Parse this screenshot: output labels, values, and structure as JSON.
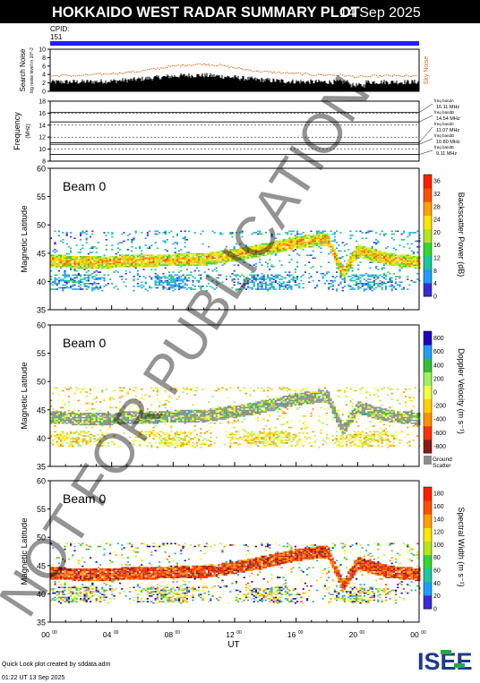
{
  "header": {
    "title": "HOKKAIDO WEST RADAR SUMMARY PLOT",
    "date": "14 Sep 2025",
    "cpid_label": "CPID:",
    "cpid_value": "151"
  },
  "noise_panel": {
    "ylabel": "Search Noise",
    "ylabel_sub": "log noise level in 10^-2",
    "side_label": "Sky Noise",
    "ticks": [
      "0",
      "2",
      "4",
      "6",
      "8",
      "10"
    ]
  },
  "freq_panel": {
    "ylabel": "Frequency",
    "ylabel_unit": "(MHz)",
    "ticks": [
      "8",
      "10",
      "12",
      "14",
      "16",
      "18"
    ],
    "bands": [
      {
        "label": "freq bandA",
        "value": "16.11 MHz"
      },
      {
        "label": "freq bandB",
        "value": "14.54 MHz"
      },
      {
        "label": "freq bandC",
        "value": "11.07 MHz"
      },
      {
        "label": "freq bandD",
        "value": "10.80 MHz"
      },
      {
        "label": "freq bandE",
        "value": "9.11 MHz"
      }
    ]
  },
  "panels": [
    {
      "beam": "Beam  0",
      "ylabel": "Magnetic Latitude",
      "cbar_label": "Backscatter Power (dB)",
      "cbar_ticks": [
        "0",
        "4",
        "8",
        "12",
        "16",
        "20",
        "24",
        "28",
        "32",
        "36"
      ]
    },
    {
      "beam": "Beam  0",
      "ylabel": "Magnetic Latitude",
      "cbar_label": "Doppler Velocity (m s⁻¹)",
      "cbar_ticks": [
        "800",
        "600",
        "400",
        "200",
        "0",
        "-200",
        "-400",
        "-600",
        "-800"
      ],
      "ground_label_1": "Ground",
      "ground_label_2": "Scatter"
    },
    {
      "beam": "Beam  0",
      "ylabel": "Magnetic Latitude",
      "cbar_label": "Spectral Width (m s⁻¹)",
      "cbar_ticks": [
        "0",
        "20",
        "40",
        "60",
        "80",
        "100",
        "120",
        "140",
        "160",
        "180"
      ]
    }
  ],
  "lat_ticks": [
    "35",
    "40",
    "45",
    "50",
    "55",
    "60"
  ],
  "x_axis": {
    "ticks": [
      "00",
      "04",
      "08",
      "12",
      "16",
      "20",
      "00"
    ],
    "tick_sup": "00",
    "label": "UT"
  },
  "footer": {
    "credit": "Quick Look plot created by sddata.adm",
    "timestamp": "01:22 UT 13 Sep 2025",
    "logo": "ISEE"
  },
  "watermark": "NOT FOR PUBLICATION",
  "colors": {
    "cpid_bar": "#1f1fff",
    "noise_line": "#d2691e",
    "power_scale": [
      "#3a2bd6",
      "#1e9bff",
      "#19c8a0",
      "#33d633",
      "#b4e61e",
      "#ffe600",
      "#ffa000",
      "#ff5000",
      "#ff1e00"
    ],
    "velocity_scale": [
      "#8b1a1a",
      "#ff3000",
      "#ff9000",
      "#ffd000",
      "#f2ff40",
      "#a0f060",
      "#30c030",
      "#20a0ff",
      "#2000c0"
    ],
    "ground_scatter": "#8c8c8c"
  },
  "chart_data": [
    {
      "type": "line",
      "title": "Search Noise",
      "x_unit": "UT hours",
      "x_range": [
        0,
        24
      ],
      "ylim": [
        0,
        10
      ],
      "series": [
        {
          "name": "Sky Noise",
          "x": [
            0,
            1,
            2,
            3,
            4,
            5,
            6,
            7,
            8,
            9,
            10,
            11,
            12,
            13,
            14,
            15,
            16,
            17,
            18,
            19,
            20,
            21,
            22,
            23,
            24
          ],
          "values": [
            3.6,
            3.8,
            3.7,
            4.0,
            4.2,
            4.5,
            4.8,
            5.4,
            6.0,
            6.3,
            6.5,
            6.2,
            5.6,
            5.0,
            4.6,
            4.4,
            4.2,
            4.0,
            3.9,
            3.8,
            3.4,
            3.6,
            3.7,
            3.6,
            3.5
          ]
        }
      ]
    },
    {
      "type": "line",
      "title": "Frequency",
      "x_range": [
        0,
        24
      ],
      "ylim": [
        8,
        18
      ],
      "series": [
        {
          "name": "freq bandA",
          "values": [
            16.11
          ]
        },
        {
          "name": "freq bandB",
          "values": [
            14.54
          ]
        },
        {
          "name": "freq bandC",
          "values": [
            11.07
          ]
        },
        {
          "name": "freq bandD",
          "values": [
            10.8
          ]
        },
        {
          "name": "freq bandE",
          "values": [
            9.11
          ]
        }
      ]
    },
    {
      "type": "heatmap",
      "title": "Beam 0 Backscatter Power",
      "x_range": [
        0,
        24
      ],
      "ylim": [
        35,
        60
      ],
      "xlabel": "UT",
      "ylabel": "Magnetic Latitude",
      "color_range": [
        0,
        36
      ],
      "echo_band": {
        "x": [
          0,
          2,
          4,
          6,
          8,
          10,
          12,
          14,
          16,
          18,
          19,
          20,
          22,
          24
        ],
        "lat": [
          43.8,
          43.5,
          43.6,
          43.8,
          43.9,
          44.0,
          44.8,
          45.8,
          47.0,
          47.6,
          41.5,
          45.5,
          44.0,
          43.5
        ],
        "power": [
          22,
          20,
          18,
          18,
          20,
          18,
          22,
          20,
          24,
          14,
          12,
          20,
          20,
          16
        ]
      }
    },
    {
      "type": "heatmap",
      "title": "Beam 0 Doppler Velocity",
      "x_range": [
        0,
        24
      ],
      "ylim": [
        35,
        60
      ],
      "color_range": [
        -800,
        800
      ],
      "ground_scatter": true
    },
    {
      "type": "heatmap",
      "title": "Beam 0 Spectral Width",
      "x_range": [
        0,
        24
      ],
      "ylim": [
        35,
        60
      ],
      "color_range": [
        0,
        180
      ]
    }
  ]
}
